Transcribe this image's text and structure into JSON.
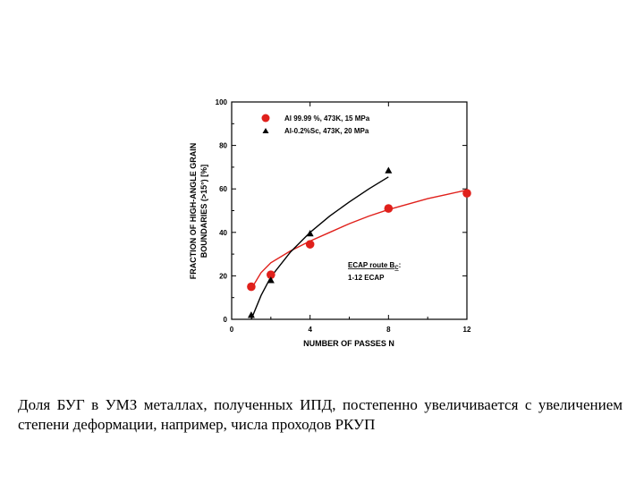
{
  "chart_data": {
    "type": "scatter",
    "xlabel": "NUMBER OF PASSES N",
    "ylabel_lines": [
      "FRACTION OF HIGH-ANGLE GRAIN",
      "BOUNDARIES (>15°) [%]"
    ],
    "x_ticks": [
      0,
      4,
      8,
      12
    ],
    "y_ticks": [
      0,
      20,
      40,
      60,
      80,
      100
    ],
    "xlim": [
      0,
      12
    ],
    "ylim": [
      0,
      100
    ],
    "grid": false,
    "legend_position": "top-left",
    "series": [
      {
        "name": "Al 99.99 %, 473K, 15 MPa",
        "marker": "circle",
        "color": "#e0201b",
        "x": [
          1,
          2,
          4,
          8,
          12
        ],
        "y": [
          15,
          20.5,
          34.5,
          51,
          58
        ],
        "fit": [
          [
            1,
            14
          ],
          [
            1.5,
            21.5
          ],
          [
            2,
            26
          ],
          [
            3,
            31.5
          ],
          [
            4,
            36
          ],
          [
            5,
            40
          ],
          [
            6,
            44
          ],
          [
            7,
            47.5
          ],
          [
            8,
            50.5
          ],
          [
            9,
            53
          ],
          [
            10,
            55.5
          ],
          [
            11,
            57.5
          ],
          [
            12,
            59.5
          ]
        ]
      },
      {
        "name": "Al-0.2%Sc, 473K, 20 MPa",
        "marker": "triangle",
        "color": "#000000",
        "x": [
          1,
          2,
          4,
          8
        ],
        "y": [
          2,
          18,
          39.5,
          68.5
        ],
        "fit": [
          [
            1,
            0
          ],
          [
            1.5,
            11
          ],
          [
            2,
            19.5
          ],
          [
            3,
            31
          ],
          [
            4,
            40
          ],
          [
            5,
            47.5
          ],
          [
            6,
            54
          ],
          [
            7,
            60
          ],
          [
            8,
            65.5
          ]
        ]
      }
    ],
    "annotation": {
      "line1_main": "ECAP route B",
      "line1_sub": "C",
      "line1_end": ":",
      "line2": "1-12 ECAP"
    }
  },
  "caption": "Доля БУГ в УМЗ металлах, полученных ИПД, постепенно увеличивается с увеличением степени деформации, например, числа проходов РКУП"
}
